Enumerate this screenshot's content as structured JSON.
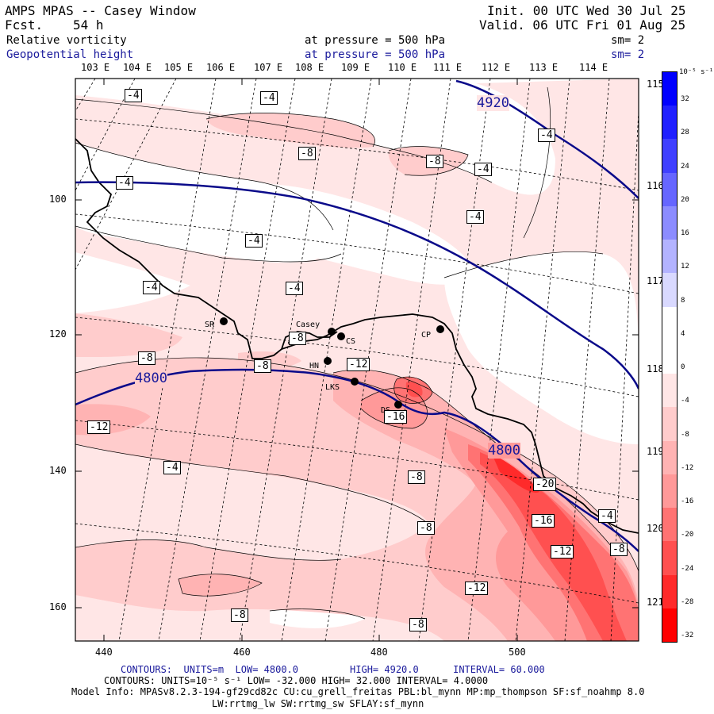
{
  "header": {
    "model_line": "AMPS MPAS -- Casey Window",
    "fcst_label": "Fcst.",
    "fcst_value": "54 h",
    "init": "Init. 00 UTC Wed 30 Jul 25",
    "valid": "Valid. 06 UTC Fri 01 Aug 25",
    "field1_name": "Relative vorticity",
    "field1_level": "at pressure =  500 hPa",
    "field1_sm": "sm= 2",
    "field2_name": "Geopotential height",
    "field2_level": "at pressure =  500 hPa",
    "field2_sm": "sm= 2"
  },
  "colors": {
    "navy": "#1a1a9c",
    "height_contour": "#0a0a8a",
    "coast": "#000000"
  },
  "longitude_labels_top": [
    "103 E",
    "104 E",
    "105 E",
    "106 E",
    "107 E",
    "108 E",
    "109 E",
    "110 E",
    "111 E",
    "112 E",
    "113 E",
    "114 E"
  ],
  "longitude_labels_right": [
    "115 E",
    "116 E",
    "117 E",
    "118 E",
    "119 E",
    "120 E",
    "121 E"
  ],
  "x_ticks": [
    "440",
    "460",
    "480",
    "500"
  ],
  "y_ticks": [
    "100",
    "120",
    "140",
    "160"
  ],
  "stations": [
    {
      "name": "SR"
    },
    {
      "name": "Casey"
    },
    {
      "name": "CS"
    },
    {
      "name": "HN"
    },
    {
      "name": "CP"
    },
    {
      "name": "LKS"
    },
    {
      "name": "DS"
    }
  ],
  "height_labels": [
    "4920",
    "4800",
    "4800"
  ],
  "vorticity_labels": [
    "-4",
    "-4",
    "-8",
    "-8",
    "-4",
    "-4",
    "-4",
    "-4",
    "-4",
    "-4",
    "-4",
    "-8",
    "-8",
    "-8",
    "-12",
    "-12",
    "-16",
    "-8",
    "-4",
    "-8",
    "-20",
    "-16",
    "-12",
    "-12",
    "-8",
    "-8",
    "-4",
    "-8"
  ],
  "colorbar": {
    "unit": "10⁻⁵ s⁻¹",
    "labels": [
      "32",
      "28",
      "24",
      "20",
      "16",
      "12",
      "8",
      "4",
      "0",
      "-4",
      "-8",
      "-12",
      "-16",
      "-20",
      "-24",
      "-28",
      "-32"
    ],
    "colors": [
      "#0000ff",
      "#2020ff",
      "#4040ff",
      "#6666ff",
      "#8c8cff",
      "#b3b3ff",
      "#d9d9ff",
      "#ffffff",
      "#ffffff",
      "#ffe6e6",
      "#ffcccc",
      "#ffb3b3",
      "#ff9999",
      "#ff7373",
      "#ff5050",
      "#ff2a2a",
      "#ff0000"
    ]
  },
  "footer": {
    "line1_contours": "CONTOURS:",
    "line1_units": "UNITS=m",
    "line1_low": "LOW=  4800.0",
    "line1_high": "HIGH=  4920.0",
    "line1_interval": "INTERVAL=   60.000",
    "line2": "CONTOURS:  UNITS=10⁻⁵ s⁻¹  LOW= -32.000      HIGH=  32.000      INTERVAL=   4.0000",
    "line3": "Model Info: MPASv8.2.3-194-gf29cd82c CU:cu_grell_freitas PBL:bl_mynn MP:mp_thompson SF:sf_noahmp 8.0",
    "line4": "LW:rrtmg_lw SW:rrtmg_sw SFLAY:sf_mynn"
  }
}
